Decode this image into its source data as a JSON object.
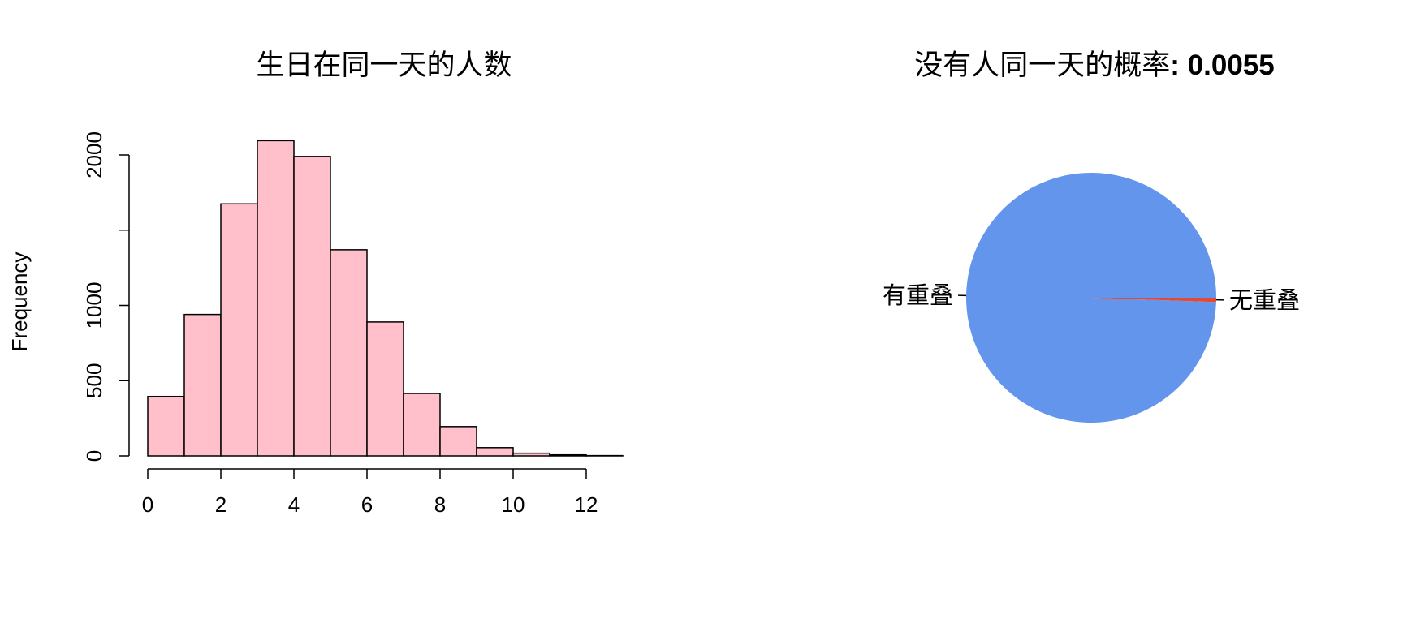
{
  "chart_data": [
    {
      "type": "bar",
      "title": "生日在同一天的人数",
      "xlabel": "",
      "ylabel": "Frequency",
      "bin_edges": [
        0,
        1,
        2,
        3,
        4,
        5,
        6,
        7,
        8,
        9,
        10,
        11,
        12,
        13
      ],
      "values": [
        395,
        940,
        1675,
        2095,
        1990,
        1370,
        890,
        415,
        195,
        55,
        18,
        7,
        2
      ],
      "xticks": [
        "0",
        "2",
        "4",
        "6",
        "8",
        "10",
        "12"
      ],
      "yticks": [
        "0",
        "500",
        "1000",
        "2000"
      ],
      "xlim": [
        0,
        12
      ],
      "ylim": [
        0,
        2000
      ],
      "bar_color": "#FFC0CB",
      "edge_color": "#000000",
      "grid": false
    },
    {
      "type": "pie",
      "title": "没有人同一天的概率",
      "title_value": ": 0.0055",
      "slices": [
        {
          "label": "有重叠",
          "value": 0.9945,
          "color": "#6495ED"
        },
        {
          "label": "无重叠",
          "value": 0.0055,
          "color": "#E34A33"
        }
      ]
    }
  ]
}
